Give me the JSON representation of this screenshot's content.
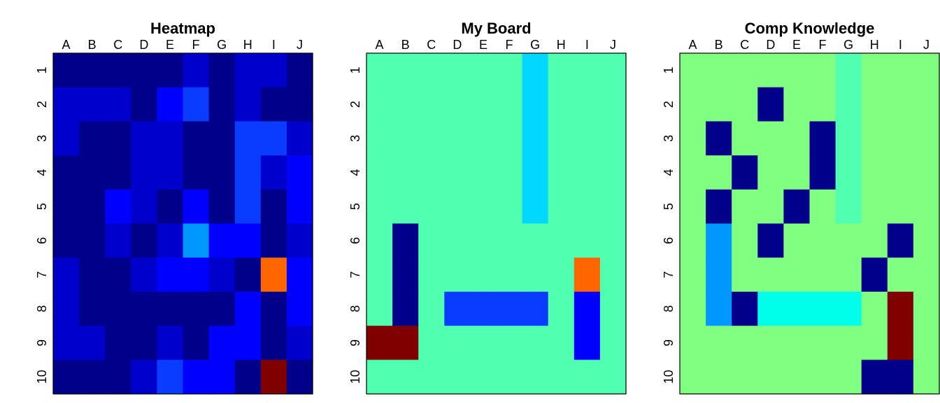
{
  "palette": {
    "dark_navy": "#00008b",
    "navy": "#0000a8",
    "blue": "#0000cc",
    "bright_blue": "#0000ff",
    "royal_blue": "#0a3cff",
    "sky": "#0098ff",
    "cyan": "#00d8ff",
    "aqua": "#00ffea",
    "mint": "#50ffb0",
    "light_green": "#80ff80",
    "orange": "#ff6600",
    "maroon": "#800000"
  },
  "chart_data": [
    {
      "type": "heatmap",
      "title": "Heatmap",
      "columns": [
        "A",
        "B",
        "C",
        "D",
        "E",
        "F",
        "G",
        "H",
        "I",
        "J"
      ],
      "rows": [
        "1",
        "2",
        "3",
        "4",
        "5",
        "6",
        "7",
        "8",
        "9",
        "10"
      ],
      "cells": [
        [
          "dark_navy",
          "dark_navy",
          "dark_navy",
          "dark_navy",
          "dark_navy",
          "blue",
          "dark_navy",
          "blue",
          "blue",
          "dark_navy"
        ],
        [
          "blue",
          "blue",
          "blue",
          "dark_navy",
          "bright_blue",
          "royal_blue",
          "dark_navy",
          "blue",
          "dark_navy",
          "dark_navy"
        ],
        [
          "blue",
          "dark_navy",
          "dark_navy",
          "blue",
          "blue",
          "dark_navy",
          "dark_navy",
          "royal_blue",
          "royal_blue",
          "blue"
        ],
        [
          "dark_navy",
          "dark_navy",
          "dark_navy",
          "blue",
          "blue",
          "dark_navy",
          "dark_navy",
          "royal_blue",
          "blue",
          "bright_blue"
        ],
        [
          "dark_navy",
          "dark_navy",
          "bright_blue",
          "blue",
          "dark_navy",
          "bright_blue",
          "dark_navy",
          "royal_blue",
          "dark_navy",
          "bright_blue"
        ],
        [
          "dark_navy",
          "dark_navy",
          "blue",
          "dark_navy",
          "blue",
          "sky",
          "bright_blue",
          "bright_blue",
          "dark_navy",
          "blue"
        ],
        [
          "blue",
          "dark_navy",
          "dark_navy",
          "blue",
          "bright_blue",
          "bright_blue",
          "blue",
          "dark_navy",
          "orange",
          "bright_blue"
        ],
        [
          "blue",
          "dark_navy",
          "dark_navy",
          "dark_navy",
          "dark_navy",
          "dark_navy",
          "dark_navy",
          "bright_blue",
          "dark_navy",
          "bright_blue"
        ],
        [
          "blue",
          "blue",
          "dark_navy",
          "dark_navy",
          "blue",
          "dark_navy",
          "bright_blue",
          "bright_blue",
          "dark_navy",
          "blue"
        ],
        [
          "dark_navy",
          "dark_navy",
          "dark_navy",
          "blue",
          "royal_blue",
          "bright_blue",
          "bright_blue",
          "dark_navy",
          "maroon",
          "dark_navy"
        ]
      ]
    },
    {
      "type": "heatmap",
      "title": "My Board",
      "columns": [
        "A",
        "B",
        "C",
        "D",
        "E",
        "F",
        "G",
        "H",
        "I",
        "J"
      ],
      "rows": [
        "1",
        "2",
        "3",
        "4",
        "5",
        "6",
        "7",
        "8",
        "9",
        "10"
      ],
      "cells": [
        [
          "mint",
          "mint",
          "mint",
          "mint",
          "mint",
          "mint",
          "cyan",
          "mint",
          "mint",
          "mint"
        ],
        [
          "mint",
          "mint",
          "mint",
          "mint",
          "mint",
          "mint",
          "cyan",
          "mint",
          "mint",
          "mint"
        ],
        [
          "mint",
          "mint",
          "mint",
          "mint",
          "mint",
          "mint",
          "cyan",
          "mint",
          "mint",
          "mint"
        ],
        [
          "mint",
          "mint",
          "mint",
          "mint",
          "mint",
          "mint",
          "cyan",
          "mint",
          "mint",
          "mint"
        ],
        [
          "mint",
          "mint",
          "mint",
          "mint",
          "mint",
          "mint",
          "cyan",
          "mint",
          "mint",
          "mint"
        ],
        [
          "mint",
          "dark_navy",
          "mint",
          "mint",
          "mint",
          "mint",
          "mint",
          "mint",
          "mint",
          "mint"
        ],
        [
          "mint",
          "dark_navy",
          "mint",
          "mint",
          "mint",
          "mint",
          "mint",
          "mint",
          "orange",
          "mint"
        ],
        [
          "mint",
          "dark_navy",
          "mint",
          "royal_blue",
          "royal_blue",
          "royal_blue",
          "royal_blue",
          "mint",
          "bright_blue",
          "mint"
        ],
        [
          "maroon",
          "maroon",
          "mint",
          "mint",
          "mint",
          "mint",
          "mint",
          "mint",
          "bright_blue",
          "mint"
        ],
        [
          "mint",
          "mint",
          "mint",
          "mint",
          "mint",
          "mint",
          "mint",
          "mint",
          "mint",
          "mint"
        ]
      ]
    },
    {
      "type": "heatmap",
      "title": "Comp Knowledge",
      "columns": [
        "A",
        "B",
        "C",
        "D",
        "E",
        "F",
        "G",
        "H",
        "I",
        "J"
      ],
      "rows": [
        "1",
        "2",
        "3",
        "4",
        "5",
        "6",
        "7",
        "8",
        "9",
        "10"
      ],
      "cells": [
        [
          "light_green",
          "light_green",
          "light_green",
          "light_green",
          "light_green",
          "light_green",
          "mint",
          "light_green",
          "light_green",
          "light_green"
        ],
        [
          "light_green",
          "light_green",
          "light_green",
          "dark_navy",
          "light_green",
          "light_green",
          "mint",
          "light_green",
          "light_green",
          "light_green"
        ],
        [
          "light_green",
          "dark_navy",
          "light_green",
          "light_green",
          "light_green",
          "dark_navy",
          "mint",
          "light_green",
          "light_green",
          "light_green"
        ],
        [
          "light_green",
          "light_green",
          "dark_navy",
          "light_green",
          "light_green",
          "dark_navy",
          "mint",
          "light_green",
          "light_green",
          "light_green"
        ],
        [
          "light_green",
          "dark_navy",
          "light_green",
          "light_green",
          "dark_navy",
          "light_green",
          "mint",
          "light_green",
          "light_green",
          "light_green"
        ],
        [
          "light_green",
          "sky",
          "light_green",
          "dark_navy",
          "light_green",
          "light_green",
          "light_green",
          "light_green",
          "dark_navy",
          "light_green"
        ],
        [
          "light_green",
          "sky",
          "light_green",
          "light_green",
          "light_green",
          "light_green",
          "light_green",
          "dark_navy",
          "light_green",
          "light_green"
        ],
        [
          "light_green",
          "sky",
          "dark_navy",
          "aqua",
          "aqua",
          "aqua",
          "aqua",
          "light_green",
          "maroon",
          "light_green"
        ],
        [
          "light_green",
          "light_green",
          "light_green",
          "light_green",
          "light_green",
          "light_green",
          "light_green",
          "light_green",
          "maroon",
          "light_green"
        ],
        [
          "light_green",
          "light_green",
          "light_green",
          "light_green",
          "light_green",
          "light_green",
          "light_green",
          "dark_navy",
          "dark_navy",
          "light_green"
        ]
      ]
    }
  ]
}
